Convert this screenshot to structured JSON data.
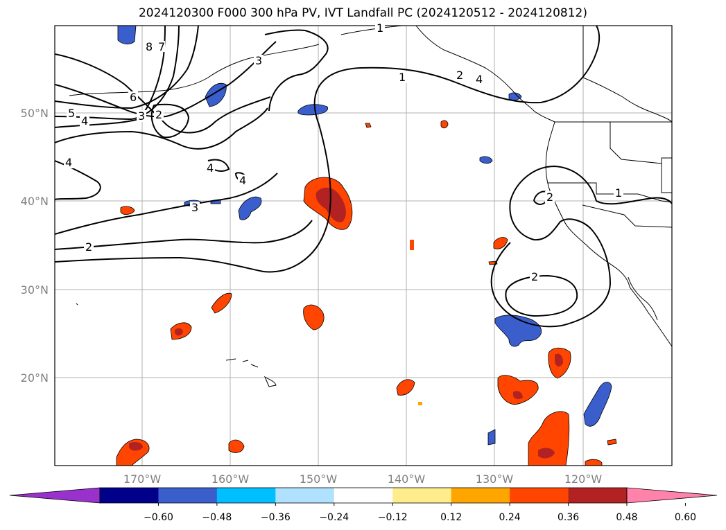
{
  "title": "2024120300 F000 300 hPa PV, IVT Landfall PC (2024120512 - 2024120812)",
  "map": {
    "latitude_labels": [
      "50°N",
      "40°N",
      "30°N",
      "20°N"
    ],
    "longitude_labels": [
      "170°W",
      "160°W",
      "150°W",
      "140°W",
      "130°W",
      "120°W"
    ],
    "contour_labels": [
      "1",
      "1",
      "2",
      "4",
      "8",
      "7",
      "3",
      "6",
      "5",
      "4",
      "3",
      "2",
      "4",
      "4",
      "4",
      "3",
      "2",
      "1",
      "2",
      "2"
    ],
    "gridlines": true
  },
  "colorbar": {
    "tick_labels": [
      "−0.60",
      "−0.48",
      "−0.36",
      "−0.24",
      "−0.12",
      "0.12",
      "0.24",
      "0.36",
      "0.48",
      "0.60"
    ],
    "colors": [
      "#9932cc",
      "#00008b",
      "#3a5fcd",
      "#00bfff",
      "#b0e2ff",
      "#ffffff",
      "#ffec8b",
      "#ffa500",
      "#ff4500",
      "#b22222",
      "#ff82ab"
    ]
  }
}
